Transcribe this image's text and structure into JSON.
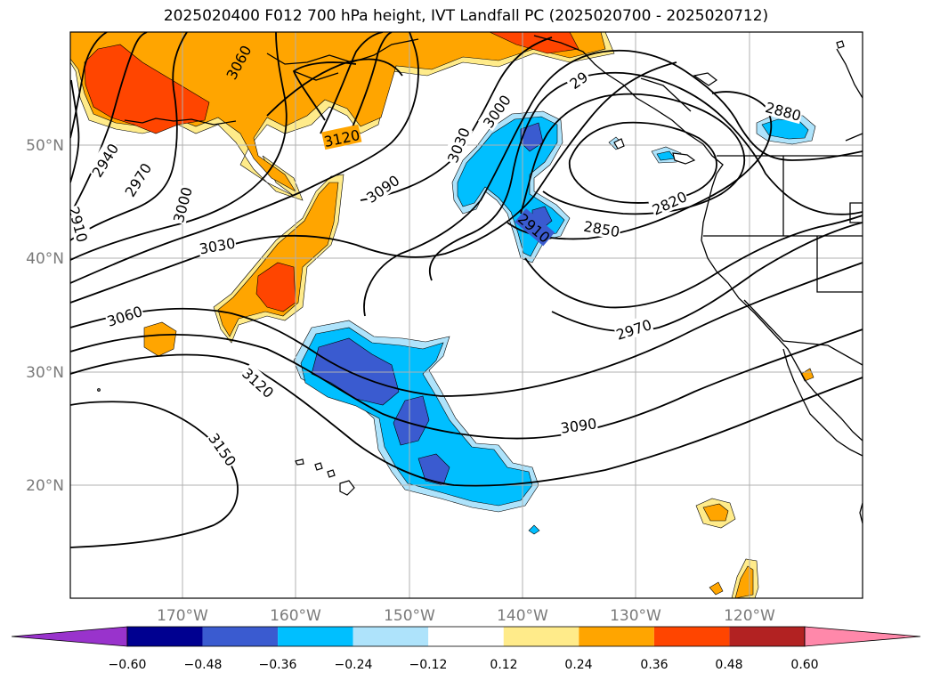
{
  "title": "2025020400 F012 700 hPa height, IVT Landfall PC (2025020700 - 2025020712)",
  "map": {
    "longitude_labels": [
      "170°W",
      "160°W",
      "150°W",
      "140°W",
      "130°W",
      "120°W"
    ],
    "latitude_labels": [
      "50°N",
      "40°N",
      "30°N",
      "20°N"
    ],
    "contour_labels": [
      {
        "name": "contour-label-3060-north",
        "text": "3060"
      },
      {
        "name": "contour-label-3120-north",
        "text": "3120"
      },
      {
        "name": "contour-label-3090-north",
        "text": "3090"
      },
      {
        "name": "contour-label-3030-north",
        "text": "3030"
      },
      {
        "name": "contour-label-3000-north",
        "text": "3000"
      },
      {
        "name": "contour-label-2940",
        "text": "2940"
      },
      {
        "name": "contour-label-2970-west",
        "text": "2970"
      },
      {
        "name": "contour-label-3000-west",
        "text": "3000"
      },
      {
        "name": "contour-label-2910-west",
        "text": "2910"
      },
      {
        "name": "contour-label-3030-west",
        "text": "3030"
      },
      {
        "name": "contour-label-3060-west",
        "text": "3060"
      },
      {
        "name": "contour-label-3120-south",
        "text": "3120"
      },
      {
        "name": "contour-label-3150",
        "text": "3150"
      },
      {
        "name": "contour-label-3090-south",
        "text": "3090"
      },
      {
        "name": "contour-label-2970-east",
        "text": "2970"
      },
      {
        "name": "contour-label-2910-east",
        "text": "2910"
      },
      {
        "name": "contour-label-2850",
        "text": "2850"
      },
      {
        "name": "contour-label-2820",
        "text": "2820"
      },
      {
        "name": "contour-label-2880",
        "text": "2880"
      },
      {
        "name": "contour-label-29-partial",
        "text": "29"
      }
    ]
  },
  "colorbar": {
    "ticks": [
      "−0.60",
      "−0.48",
      "−0.36",
      "−0.24",
      "−0.12",
      "0.12",
      "0.24",
      "0.36",
      "0.48",
      "0.60"
    ],
    "colors": [
      "#9933cc",
      "#000090",
      "#3a5bd0",
      "#00bfff",
      "#aee3fb",
      "#ffffff",
      "#ffeb8a",
      "#ffa500",
      "#ff4500",
      "#b22222",
      "#ff88aa"
    ]
  }
}
